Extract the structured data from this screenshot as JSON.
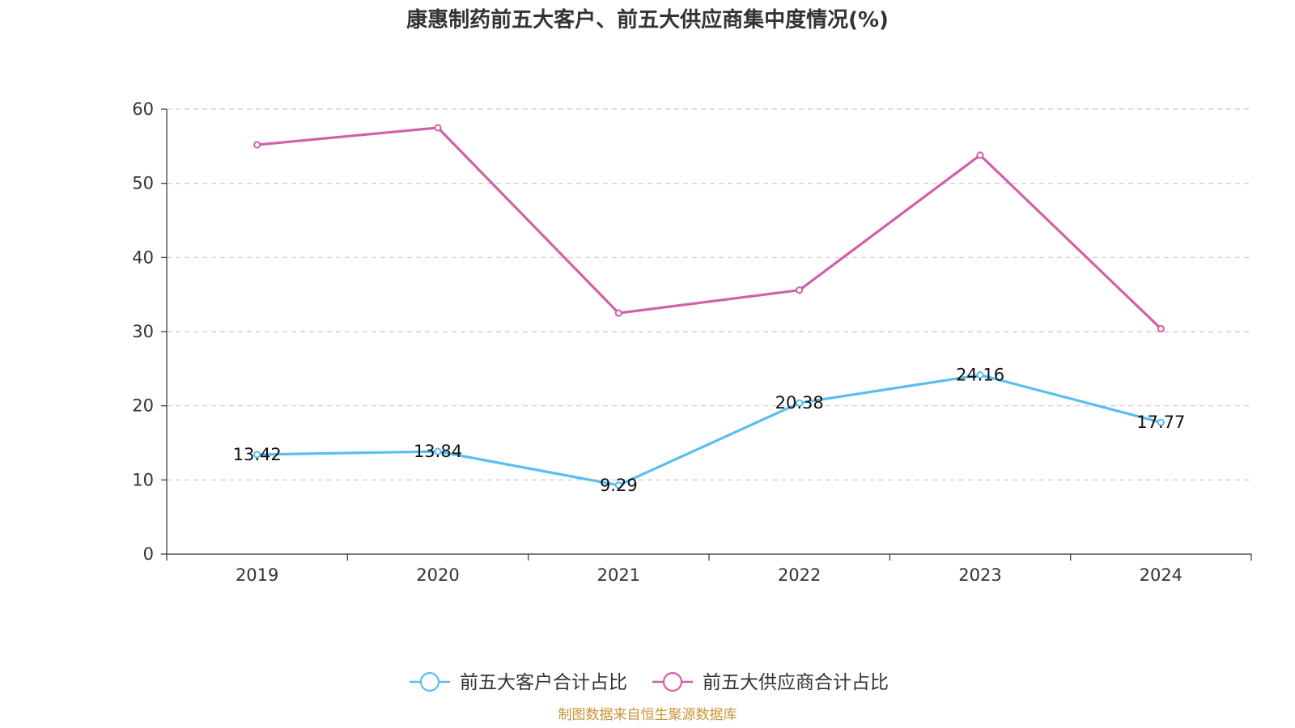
{
  "chart_data": {
    "type": "line",
    "title": "康惠制药前五大客户、前五大供应商集中度情况(%)",
    "categories": [
      "2019",
      "2020",
      "2021",
      "2022",
      "2023",
      "2024"
    ],
    "ylim": [
      0,
      60
    ],
    "yticks": [
      0,
      10,
      20,
      30,
      40,
      50,
      60
    ],
    "grid": "horizontal-dashed",
    "legend_position": "bottom-center",
    "series": [
      {
        "name": "前五大客户合计占比",
        "color": "#5bbdf0",
        "values": [
          13.42,
          13.84,
          9.29,
          20.38,
          24.16,
          17.77
        ],
        "labels": [
          "13.42",
          "13.84",
          "9.29",
          "20.38",
          "24.16",
          "17.77"
        ],
        "show_labels": true
      },
      {
        "name": "前五大供应商合计占比",
        "color": "#d160a8",
        "values": [
          55.2,
          57.5,
          32.5,
          35.6,
          53.8,
          30.4
        ],
        "show_labels": false
      }
    ],
    "source": "制图数据来自恒生聚源数据库"
  }
}
